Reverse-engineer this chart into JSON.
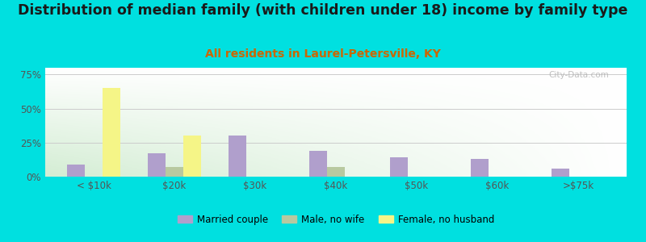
{
  "title": "Distribution of median family (with children under 18) income by family type",
  "subtitle": "All residents in Laurel-Petersville, KY",
  "categories": [
    "< $10k",
    "$20k",
    "$30k",
    "$40k",
    "$50k",
    "$60k",
    ">$75k"
  ],
  "series": {
    "Married couple": [
      9,
      17,
      30,
      19,
      14,
      13,
      6
    ],
    "Male, no wife": [
      0,
      7,
      0,
      7,
      0,
      0,
      0
    ],
    "Female, no husband": [
      65,
      30,
      0,
      0,
      0,
      0,
      0
    ]
  },
  "colors": {
    "Married couple": "#b09fcc",
    "Male, no wife": "#b8c9a0",
    "Female, no husband": "#f5f587"
  },
  "ylim": [
    0,
    80
  ],
  "yticks": [
    0,
    25,
    50,
    75
  ],
  "ytick_labels": [
    "0%",
    "25%",
    "50%",
    "75%"
  ],
  "background_color": "#00e0e0",
  "title_fontsize": 12.5,
  "subtitle_fontsize": 10,
  "subtitle_color": "#cc6600",
  "watermark": "City-Data.com"
}
